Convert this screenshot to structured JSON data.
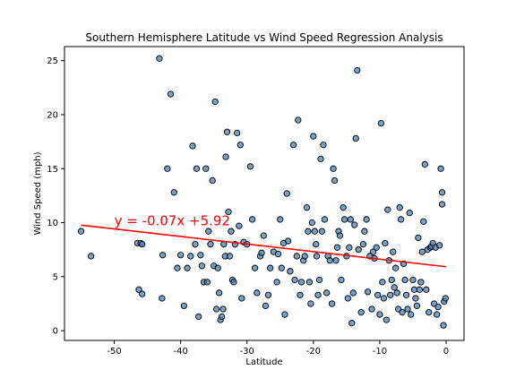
{
  "chart_data": {
    "type": "scatter",
    "title": "Southern Hemisphere Latitude vs Wind Speed Regression Analysis",
    "xlabel": "Latitude",
    "ylabel": "Wind Speed (mph)",
    "xlim": [
      -57.5,
      2.7
    ],
    "ylim": [
      -0.9,
      26.3
    ],
    "x_ticks": [
      -50,
      -40,
      -30,
      -20,
      -10,
      0
    ],
    "y_ticks": [
      0,
      5,
      10,
      15,
      20,
      25
    ],
    "grid": false,
    "point_color": "#4682b4",
    "point_edge_color": "#000000",
    "points": [
      [
        -55,
        9.2
      ],
      [
        -53.5,
        6.9
      ],
      [
        -46.5,
        8.1
      ],
      [
        -46,
        8.1
      ],
      [
        -45.8,
        8
      ],
      [
        -46.3,
        3.8
      ],
      [
        -45.8,
        3.4
      ],
      [
        -43.2,
        25.2
      ],
      [
        -42.7,
        7
      ],
      [
        -42.8,
        3
      ],
      [
        -42,
        15
      ],
      [
        -41.5,
        21.9
      ],
      [
        -41,
        12.8
      ],
      [
        -40.5,
        5.8
      ],
      [
        -40,
        7
      ],
      [
        -39.5,
        2.3
      ],
      [
        -39,
        5.8
      ],
      [
        -38.5,
        6.9
      ],
      [
        -38.2,
        17.1
      ],
      [
        -37.8,
        8
      ],
      [
        -37.6,
        15
      ],
      [
        -37.3,
        1.3
      ],
      [
        -37,
        7
      ],
      [
        -36.8,
        6
      ],
      [
        -36.5,
        4.5
      ],
      [
        -36.2,
        15
      ],
      [
        -36,
        4.5
      ],
      [
        -35.8,
        9.2
      ],
      [
        -35.5,
        8
      ],
      [
        -35.2,
        13.9
      ],
      [
        -35,
        6
      ],
      [
        -34.8,
        21.2
      ],
      [
        -34.6,
        2
      ],
      [
        -34.4,
        5.8
      ],
      [
        -34.2,
        3.5
      ],
      [
        -34,
        1
      ],
      [
        -33.8,
        1.3
      ],
      [
        -33.6,
        2
      ],
      [
        -33.5,
        8
      ],
      [
        -33.3,
        6.9
      ],
      [
        -33.2,
        16.1
      ],
      [
        -33,
        18.4
      ],
      [
        -32.8,
        11
      ],
      [
        -32.6,
        6.9
      ],
      [
        -32.4,
        9.2
      ],
      [
        -32.2,
        4.7
      ],
      [
        -32,
        4.5
      ],
      [
        -31.8,
        8
      ],
      [
        -31.5,
        18.3
      ],
      [
        -31.2,
        9.7
      ],
      [
        -31,
        17.2
      ],
      [
        -30.8,
        3
      ],
      [
        -30.5,
        8.2
      ],
      [
        -30,
        8
      ],
      [
        -29.5,
        15.2
      ],
      [
        -29.2,
        10.3
      ],
      [
        -28.8,
        5.8
      ],
      [
        -28.5,
        3.5
      ],
      [
        -28,
        6.9
      ],
      [
        -27.8,
        7.2
      ],
      [
        -27.5,
        8.8
      ],
      [
        -27.2,
        2.3
      ],
      [
        -26.8,
        3.3
      ],
      [
        -26.5,
        5.8
      ],
      [
        -26,
        7.3
      ],
      [
        -25.5,
        4.5
      ],
      [
        -25.3,
        7.1
      ],
      [
        -25,
        10.3
      ],
      [
        -24.8,
        5.8
      ],
      [
        -24.5,
        8.1
      ],
      [
        -24.3,
        1.5
      ],
      [
        -24,
        12.7
      ],
      [
        -23.8,
        8.3
      ],
      [
        -23.5,
        5.5
      ],
      [
        -23,
        17.2
      ],
      [
        -22.8,
        4.7
      ],
      [
        -22.5,
        6.9
      ],
      [
        -22.3,
        19.5
      ],
      [
        -22,
        3.3
      ],
      [
        -21.8,
        4.5
      ],
      [
        -21.5,
        6.5
      ],
      [
        -21.3,
        6.9
      ],
      [
        -21,
        11.4
      ],
      [
        -20.8,
        9.2
      ],
      [
        -20.6,
        4.5
      ],
      [
        -20.4,
        2.5
      ],
      [
        -20.2,
        10
      ],
      [
        -20,
        18
      ],
      [
        -19.8,
        9.2
      ],
      [
        -19.6,
        8
      ],
      [
        -19.5,
        6.9
      ],
      [
        -19.3,
        3.3
      ],
      [
        -19.1,
        4.7
      ],
      [
        -18.9,
        15.9
      ],
      [
        -18.7,
        9.2
      ],
      [
        -18.5,
        17.2
      ],
      [
        -18.3,
        10.3
      ],
      [
        -18,
        3.5
      ],
      [
        -17.8,
        6.9
      ],
      [
        -17.5,
        6.5
      ],
      [
        -17.2,
        2.5
      ],
      [
        -17,
        15
      ],
      [
        -16.8,
        13.9
      ],
      [
        -16.6,
        6.5
      ],
      [
        -16.4,
        7.7
      ],
      [
        -16.2,
        9.2
      ],
      [
        -16,
        8.8
      ],
      [
        -15.8,
        4.7
      ],
      [
        -15.5,
        11.4
      ],
      [
        -15.3,
        10.3
      ],
      [
        -15,
        6.9
      ],
      [
        -14.8,
        3
      ],
      [
        -14.6,
        7.7
      ],
      [
        -14.4,
        10.3
      ],
      [
        -14.2,
        0.7
      ],
      [
        -14,
        3.5
      ],
      [
        -13.8,
        9.8
      ],
      [
        -13.6,
        17.8
      ],
      [
        -13.4,
        24.1
      ],
      [
        -13.2,
        7.5
      ],
      [
        -12.8,
        1.7
      ],
      [
        -12.5,
        8
      ],
      [
        -12.3,
        9.2
      ],
      [
        -12,
        10.3
      ],
      [
        -11.8,
        3.6
      ],
      [
        -11.5,
        6.9
      ],
      [
        -11.2,
        2
      ],
      [
        -11,
        7.3
      ],
      [
        -10.8,
        6.7
      ],
      [
        -10.5,
        7.7
      ],
      [
        -10.3,
        3.3
      ],
      [
        -10,
        1.5
      ],
      [
        -9.8,
        19.2
      ],
      [
        -9.6,
        4.5
      ],
      [
        -9.4,
        3
      ],
      [
        -9.2,
        8.1
      ],
      [
        -9,
        1
      ],
      [
        -8.8,
        11.2
      ],
      [
        -8.6,
        6.5
      ],
      [
        -8.4,
        3.3
      ],
      [
        -8.2,
        4.7
      ],
      [
        -8,
        7.3
      ],
      [
        -7.8,
        4
      ],
      [
        -7.6,
        5.8
      ],
      [
        -7.4,
        3.5
      ],
      [
        -7.2,
        2
      ],
      [
        -7,
        11.4
      ],
      [
        -6.8,
        10.3
      ],
      [
        -6.6,
        1.7
      ],
      [
        -6.4,
        6.2
      ],
      [
        -6.2,
        4.7
      ],
      [
        -6,
        3.3
      ],
      [
        -5.8,
        2
      ],
      [
        -5.5,
        10.9
      ],
      [
        -5.3,
        1.5
      ],
      [
        -5,
        4.7
      ],
      [
        -4.8,
        3.8
      ],
      [
        -4.6,
        3
      ],
      [
        -4.4,
        2.3
      ],
      [
        -4.2,
        8.6
      ],
      [
        -4,
        3.8
      ],
      [
        -3.8,
        4.5
      ],
      [
        -3.6,
        7.3
      ],
      [
        -3.4,
        10.1
      ],
      [
        -3.2,
        15.4
      ],
      [
        -3,
        3.8
      ],
      [
        -2.8,
        7.5
      ],
      [
        -2.6,
        1.7
      ],
      [
        -2.4,
        7.7
      ],
      [
        -2.2,
        7.8
      ],
      [
        -2,
        8.1
      ],
      [
        -1.8,
        2.5
      ],
      [
        -1.6,
        7.7
      ],
      [
        -1.4,
        1.5
      ],
      [
        -1.2,
        2.2
      ],
      [
        -1,
        7.9
      ],
      [
        -0.8,
        15
      ],
      [
        -0.6,
        12.8
      ],
      [
        -0.6,
        11.7
      ],
      [
        -0.4,
        0.5
      ],
      [
        -0.3,
        2.7
      ],
      [
        -0.1,
        3
      ]
    ],
    "regression": {
      "slope": -0.07,
      "intercept": 5.92,
      "x_range": [
        -55,
        0
      ],
      "color": "#ff0000",
      "equation": "y = -0.07x +5.92",
      "label_at": [
        -50,
        10
      ]
    }
  }
}
